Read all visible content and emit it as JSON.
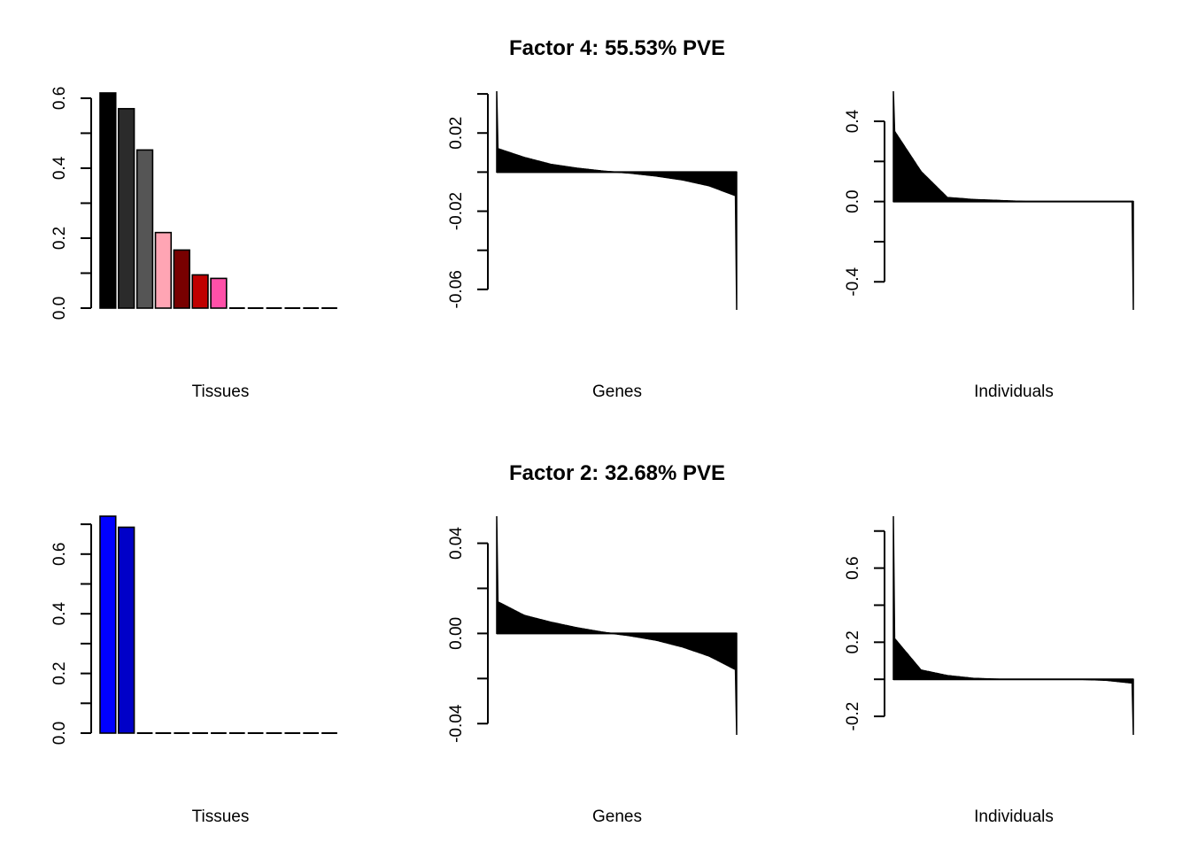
{
  "chart_data": [
    {
      "type": "bar",
      "panel": "factor4-tissues",
      "title": "Factor 4: 55.53% PVE",
      "xlabel": "Tissues",
      "ylabel": "",
      "ylim": [
        0,
        0.62
      ],
      "yticks": [
        0,
        0.1,
        0.2,
        0.3,
        0.4,
        0.5,
        0.6
      ],
      "ytick_labels": [
        "0.0",
        "",
        "0.2",
        "",
        "0.4",
        "",
        "0.6"
      ],
      "values": [
        0.615,
        0.57,
        0.452,
        0.216,
        0.166,
        0.095,
        0.085,
        0,
        0,
        0,
        0,
        0,
        0
      ],
      "colors": [
        "#000000",
        "#2b2b2b",
        "#555555",
        "#ffa5b4",
        "#780000",
        "#c00000",
        "#ff50a8",
        "#000000",
        "#000000",
        "#000000",
        "#000000",
        "#000000",
        "#000000"
      ]
    },
    {
      "type": "bar",
      "panel": "factor4-genes",
      "title": "",
      "xlabel": "Genes",
      "ylabel": "",
      "ylim": [
        -0.0705,
        0.0414
      ],
      "yticks": [
        0.04,
        0.02,
        0,
        -0.02,
        -0.04,
        -0.06
      ],
      "ytick_labels": [
        "",
        "0.02",
        "",
        "-0.02",
        "",
        "-0.06"
      ],
      "sorted_values_sample": [
        0.0414,
        0.012,
        0.0075,
        0.004,
        0.002,
        0.0005,
        -0.0005,
        -0.002,
        -0.004,
        -0.007,
        -0.012,
        -0.0705
      ],
      "max": 0.0414,
      "min": -0.0705
    },
    {
      "type": "bar",
      "panel": "factor4-individuals",
      "title": "",
      "xlabel": "Individuals",
      "ylabel": "",
      "ylim": [
        -0.54,
        0.55
      ],
      "yticks": [
        0.4,
        0.2,
        0,
        -0.2,
        -0.4
      ],
      "ytick_labels": [
        "0.4",
        "",
        "0.0",
        "",
        "-0.4"
      ],
      "sorted_values_sample": [
        0.55,
        0.35,
        0.15,
        0.02,
        0.01,
        0.005,
        0,
        0,
        0,
        0,
        0,
        -0.54
      ],
      "max": 0.55,
      "min": -0.54
    },
    {
      "type": "bar",
      "panel": "factor2-tissues",
      "title": "Factor 2: 32.68% PVE",
      "xlabel": "Tissues",
      "ylabel": "",
      "ylim": [
        0,
        0.727
      ],
      "yticks": [
        0,
        0.1,
        0.2,
        0.3,
        0.4,
        0.5,
        0.6,
        0.7
      ],
      "ytick_labels": [
        "0.0",
        "",
        "0.2",
        "",
        "0.4",
        "",
        "0.6",
        ""
      ],
      "values": [
        0.727,
        0.69,
        0,
        0,
        0,
        0,
        0,
        0,
        0,
        0,
        0,
        0,
        0
      ],
      "colors": [
        "#0000ff",
        "#0000c8",
        "#000000",
        "#000000",
        "#000000",
        "#000000",
        "#000000",
        "#000000",
        "#000000",
        "#000000",
        "#000000",
        "#000000",
        "#000000"
      ]
    },
    {
      "type": "bar",
      "panel": "factor2-genes",
      "title": "",
      "xlabel": "Genes",
      "ylabel": "",
      "ylim": [
        -0.045,
        0.052
      ],
      "yticks": [
        0.04,
        0.02,
        0,
        -0.02,
        -0.04
      ],
      "ytick_labels": [
        "0.04",
        "",
        "0.00",
        "",
        "-0.04"
      ],
      "sorted_values_sample": [
        0.052,
        0.014,
        0.008,
        0.005,
        0.0025,
        0.0005,
        -0.001,
        -0.003,
        -0.006,
        -0.01,
        -0.016,
        -0.045
      ],
      "max": 0.052,
      "min": -0.045
    },
    {
      "type": "bar",
      "panel": "factor2-individuals",
      "title": "",
      "xlabel": "Individuals",
      "ylabel": "",
      "ylim": [
        -0.3,
        0.88
      ],
      "yticks": [
        0.8,
        0.6,
        0.4,
        0.2,
        0,
        -0.2
      ],
      "ytick_labels": [
        "",
        "0.6",
        "",
        "0.2",
        "",
        "-0.2"
      ],
      "sorted_values_sample": [
        0.88,
        0.22,
        0.05,
        0.02,
        0.005,
        0,
        0,
        0,
        0,
        -0.005,
        -0.02,
        -0.3
      ],
      "max": 0.88,
      "min": -0.3
    }
  ]
}
